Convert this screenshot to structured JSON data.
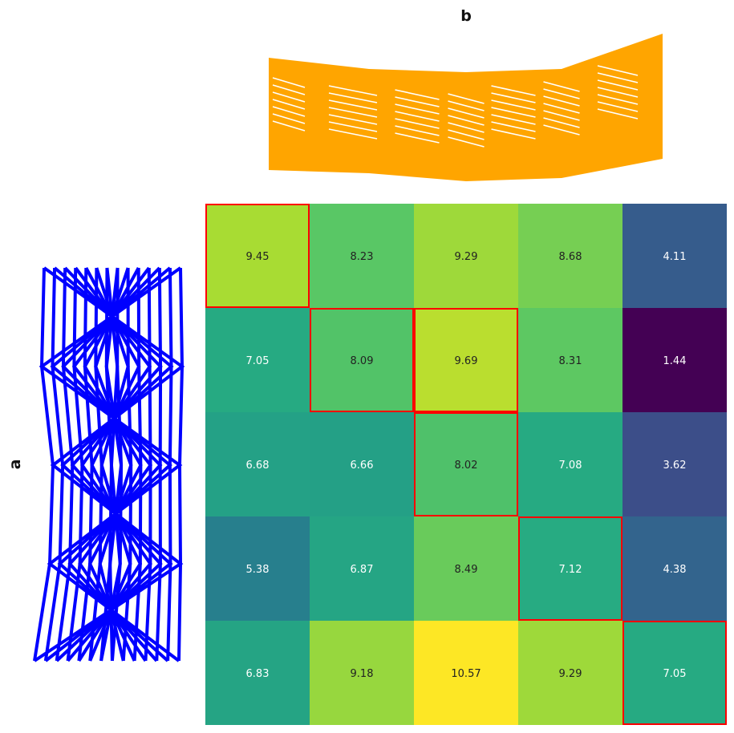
{
  "chart_data": {
    "type": "heatmap",
    "title_top": "b",
    "label_left": "a",
    "matrix": [
      [
        9.45,
        8.23,
        9.29,
        8.68,
        4.11
      ],
      [
        7.05,
        8.09,
        9.69,
        8.31,
        1.44
      ],
      [
        6.68,
        6.66,
        8.02,
        7.08,
        3.62
      ],
      [
        5.38,
        6.87,
        8.49,
        7.12,
        4.38
      ],
      [
        6.83,
        9.18,
        10.57,
        9.29,
        7.05
      ]
    ],
    "cell_labels": [
      [
        "9.45",
        "8.23",
        "9.29",
        "8.68",
        "4.11"
      ],
      [
        "7.05",
        "8.09",
        "9.69",
        "8.31",
        "1.44"
      ],
      [
        "6.68",
        "6.66",
        "8.02",
        "7.08",
        "3.62"
      ],
      [
        "5.38",
        "6.87",
        "8.49",
        "7.12",
        "4.38"
      ],
      [
        "6.83",
        "9.18",
        "10.57",
        "9.29",
        "7.05"
      ]
    ],
    "colormap": "viridis",
    "value_range": [
      1.44,
      10.57
    ],
    "highlighted_path": [
      [
        0,
        0
      ],
      [
        1,
        1
      ],
      [
        1,
        2
      ],
      [
        2,
        2
      ],
      [
        3,
        3
      ],
      [
        4,
        4
      ]
    ],
    "highlight_color": "#ff0000",
    "top_series_color": "#ffa500",
    "left_series_color": "#0000ff",
    "grid": false
  }
}
